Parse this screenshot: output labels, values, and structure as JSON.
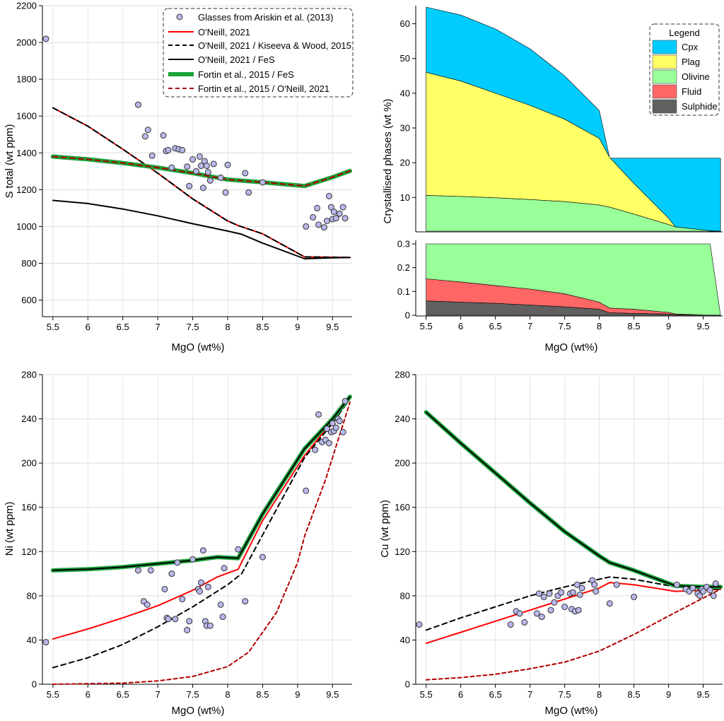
{
  "chart_data": [
    {
      "id": "sulfur",
      "type": "line",
      "xlabel": "MgO (wt%)",
      "ylabel": "S total (wt ppm)",
      "xlim": [
        5.35,
        9.78
      ],
      "ylim": [
        510,
        2200
      ],
      "xticks": [
        5.5,
        6,
        6.5,
        7,
        7.5,
        8,
        8.5,
        9,
        9.5
      ],
      "xticklabels": [
        "5.5",
        "6",
        "6.5",
        "7",
        "7.5",
        "8",
        "8.5",
        "9",
        "9.5"
      ],
      "yticks": [
        600,
        800,
        1000,
        1200,
        1400,
        1600,
        1800,
        2000,
        2200
      ],
      "yticklabels": [
        "600",
        "800",
        "1000",
        "1200",
        "1400",
        "1600",
        "1800",
        "2000",
        "2200"
      ],
      "grid": true,
      "legend_position": "top-right",
      "series": [
        {
          "name": "O'Neill, 2021",
          "color": "#ff0000",
          "width": 2,
          "dash": "",
          "x": [
            5.5,
            6.0,
            6.5,
            7.0,
            7.5,
            8.0,
            8.15,
            8.5,
            9.1,
            9.5,
            9.75
          ],
          "y": [
            1645,
            1545,
            1420,
            1290,
            1150,
            1030,
            1005,
            960,
            835,
            833,
            832
          ]
        },
        {
          "name": "O'Neill, 2021 / Kiseeva & Wood, 2015",
          "color": "#000000",
          "width": 2,
          "dash": "8,5",
          "x": [
            5.5,
            6.0,
            6.5,
            7.0,
            7.5,
            8.0,
            8.15,
            8.5,
            9.1,
            9.5,
            9.75
          ],
          "y": [
            1645,
            1545,
            1420,
            1290,
            1150,
            1030,
            1005,
            960,
            835,
            833,
            832
          ]
        },
        {
          "name": "O'Neill, 2021 / FeS",
          "color": "#000000",
          "width": 2,
          "dash": "",
          "x": [
            5.5,
            6.0,
            6.5,
            7.0,
            7.5,
            8.0,
            8.2,
            8.5,
            9.1,
            9.5,
            9.75
          ],
          "y": [
            1142,
            1125,
            1095,
            1058,
            1015,
            975,
            958,
            910,
            825,
            830,
            832
          ]
        },
        {
          "name": "Fortin et al., 2015 / FeS",
          "color": "#1aa339",
          "width": 6,
          "dash": "",
          "x": [
            5.5,
            6.0,
            6.5,
            7.0,
            7.5,
            8.0,
            8.5,
            9.1,
            9.5,
            9.75
          ],
          "y": [
            1380,
            1365,
            1345,
            1320,
            1290,
            1255,
            1240,
            1220,
            1268,
            1302
          ]
        },
        {
          "name": "Fortin et al., 2015 / O'Neill, 2021",
          "color": "#b00000",
          "width": 2,
          "dash": "7,5",
          "x": [
            5.5,
            6.0,
            6.5,
            7.0,
            7.5,
            8.0,
            8.5,
            9.1,
            9.5,
            9.75
          ],
          "y": [
            1380,
            1365,
            1345,
            1320,
            1290,
            1255,
            1240,
            1220,
            1268,
            1302
          ]
        }
      ],
      "scatter": {
        "name": "Glasses from Ariskin et al. (2013)",
        "x": [
          5.4,
          6.72,
          6.82,
          6.86,
          6.92,
          7.08,
          7.12,
          7.15,
          7.2,
          7.25,
          7.3,
          7.35,
          7.42,
          7.45,
          7.5,
          7.55,
          7.6,
          7.62,
          7.65,
          7.67,
          7.7,
          7.72,
          7.75,
          7.8,
          7.9,
          7.97,
          8.0,
          8.25,
          8.3,
          8.5,
          9.12,
          9.22,
          9.28,
          9.3,
          9.38,
          9.42,
          9.45,
          9.48,
          9.5,
          9.52,
          9.55,
          9.6,
          9.65,
          9.68
        ],
        "y": [
          2020,
          1662,
          1490,
          1525,
          1385,
          1495,
          1410,
          1415,
          1320,
          1425,
          1420,
          1415,
          1325,
          1220,
          1365,
          1300,
          1380,
          1330,
          1210,
          1355,
          1330,
          1295,
          1250,
          1340,
          1265,
          1185,
          1335,
          1290,
          1185,
          1240,
          1000,
          1050,
          1100,
          1010,
          995,
          1030,
          1165,
          1105,
          1040,
          1080,
          1045,
          1070,
          1105,
          1045
        ]
      }
    },
    {
      "id": "phases",
      "type": "area",
      "xlabel": "MgO (wt%)",
      "ylabel": "Crystallised phases (wt %)",
      "x": [
        5.5,
        6.0,
        6.5,
        7.0,
        7.5,
        8.0,
        8.15,
        8.5,
        9.0,
        9.1,
        9.6,
        9.75
      ],
      "top_ylim": [
        0.3,
        65
      ],
      "top_yticks": [
        10,
        20,
        30,
        40,
        50,
        60
      ],
      "top_yticklabels": [
        "10",
        "20",
        "30",
        "40",
        "50",
        "60"
      ],
      "bottom_ylim": [
        0,
        0.3
      ],
      "bottom_yticks": [
        0,
        0.1,
        0.2,
        0.3
      ],
      "bottom_yticklabels": [
        "0",
        "0.1",
        "0.2",
        "0.3"
      ],
      "xticks": [
        5.5,
        6,
        6.5,
        7,
        7.5,
        8,
        8.5,
        9,
        9.5
      ],
      "xticklabels": [
        "5.5",
        "6",
        "6.5",
        "7",
        "7.5",
        "8",
        "8.5",
        "9",
        "9.5"
      ],
      "legend_title": "Legend",
      "legend_position": "top-right",
      "stack_order": [
        "Sulphide",
        "Fluid",
        "Olivine",
        "Plag",
        "Cpx"
      ],
      "series": [
        {
          "name": "Cpx",
          "color": "#00ccff",
          "cumulative": [
            64.8,
            62.5,
            58.5,
            52.8,
            45.0,
            35.0,
            21.3,
            21.3,
            21.3,
            21.3,
            21.3,
            21.3
          ],
          "top_x": [
            5.5,
            6.0,
            6.5,
            7.0,
            7.5,
            8.0,
            8.15
          ]
        },
        {
          "name": "Plag",
          "color": "#ffff66",
          "cumulative": [
            46.0,
            43.5,
            40.0,
            36.5,
            32.5,
            27.0,
            21.5,
            14.0,
            4.0,
            1.5,
            0.3,
            0.3
          ]
        },
        {
          "name": "Olivine",
          "color": "#99ff99",
          "cumulative": [
            10.6,
            10.3,
            9.9,
            9.4,
            8.8,
            7.8,
            7.2,
            5.2,
            2.2,
            1.5,
            0.4,
            0.0
          ]
        },
        {
          "name": "Fluid",
          "color": "#ff6666",
          "cumulative": [
            0.153,
            0.14,
            0.125,
            0.11,
            0.09,
            0.055,
            0.03,
            0.025,
            0.012,
            0.005,
            0.0,
            0.0
          ]
        },
        {
          "name": "Sulphide",
          "color": "#606060",
          "cumulative": [
            0.06,
            0.055,
            0.05,
            0.043,
            0.035,
            0.025,
            0.01,
            0.008,
            0.005,
            0.002,
            0.0,
            0.0
          ]
        }
      ]
    },
    {
      "id": "nickel",
      "type": "line",
      "xlabel": "MgO (wt%)",
      "ylabel": "Ni (wt ppm)",
      "xlim": [
        5.35,
        9.78
      ],
      "ylim": [
        0,
        280
      ],
      "xticks": [
        5.5,
        6,
        6.5,
        7,
        7.5,
        8,
        8.5,
        9,
        9.5
      ],
      "xticklabels": [
        "5.5",
        "6",
        "6.5",
        "7",
        "7.5",
        "8",
        "8.5",
        "9",
        "9.5"
      ],
      "yticks": [
        0,
        40,
        80,
        120,
        160,
        200,
        240,
        280
      ],
      "yticklabels": [
        "0",
        "40",
        "80",
        "120",
        "160",
        "200",
        "240",
        "280"
      ],
      "grid": true,
      "series": [
        {
          "color": "#ff0000",
          "width": 2,
          "dash": "",
          "x": [
            5.5,
            6.0,
            6.5,
            7.0,
            7.5,
            7.85,
            8.15,
            8.5,
            9.1,
            9.5,
            9.75
          ],
          "y": [
            41,
            50,
            60,
            71,
            85,
            97,
            104,
            148,
            207,
            238,
            258
          ]
        },
        {
          "color": "#000000",
          "width": 2,
          "dash": "7,5",
          "x": [
            5.5,
            6.0,
            6.5,
            7.0,
            7.5,
            8.0,
            8.2,
            8.5,
            9.1,
            9.5,
            9.75
          ],
          "y": [
            15,
            24,
            36,
            52,
            70,
            90,
            100,
            135,
            205,
            236,
            258
          ]
        },
        {
          "color": "#1aa339",
          "width": 6,
          "dash": "",
          "x": [
            5.5,
            6.0,
            6.5,
            7.0,
            7.5,
            7.85,
            8.15,
            8.5,
            9.1,
            9.5,
            9.75
          ],
          "y": [
            103,
            104,
            106,
            109,
            112,
            115,
            114,
            154,
            213,
            240,
            260
          ]
        },
        {
          "color": "#000000",
          "width": 2,
          "dash": "",
          "x": [
            5.5,
            6.0,
            6.5,
            7.0,
            7.5,
            7.85,
            8.15,
            8.5,
            9.1,
            9.5,
            9.75
          ],
          "y": [
            103,
            104,
            106,
            109,
            112,
            115,
            114,
            154,
            213,
            240,
            260
          ]
        },
        {
          "color": "#b00000",
          "width": 2,
          "dash": "5,4",
          "x": [
            5.5,
            6.0,
            6.5,
            7.0,
            7.5,
            8.0,
            8.3,
            8.7,
            9.0,
            9.1,
            9.4,
            9.75
          ],
          "y": [
            0,
            0.5,
            1,
            3,
            7,
            16,
            29,
            65,
            110,
            134,
            185,
            255
          ]
        }
      ],
      "scatter": {
        "x": [
          5.4,
          6.72,
          6.8,
          6.85,
          6.9,
          7.1,
          7.13,
          7.15,
          7.2,
          7.25,
          7.28,
          7.35,
          7.42,
          7.45,
          7.5,
          7.58,
          7.6,
          7.62,
          7.65,
          7.68,
          7.7,
          7.72,
          7.75,
          7.9,
          7.93,
          7.95,
          8.15,
          8.25,
          8.5,
          9.12,
          9.25,
          9.3,
          9.35,
          9.4,
          9.42,
          9.45,
          9.48,
          9.5,
          9.52,
          9.55,
          9.58,
          9.6,
          9.65,
          9.68
        ],
        "y": [
          38,
          103,
          75,
          72,
          103,
          86,
          60,
          59,
          100,
          59,
          110,
          77,
          49,
          57,
          113,
          86,
          84,
          92,
          121,
          57,
          53,
          88,
          53,
          72,
          61,
          105,
          122,
          75,
          115,
          175,
          212,
          244,
          219,
          221,
          231,
          218,
          228,
          236,
          229,
          232,
          240,
          238,
          228,
          256
        ]
      }
    },
    {
      "id": "copper",
      "type": "line",
      "xlabel": "MgO (wt%)",
      "ylabel": "Cu (wt ppm)",
      "xlim": [
        5.35,
        9.78
      ],
      "ylim": [
        0,
        280
      ],
      "xticks": [
        5.5,
        6,
        6.5,
        7,
        7.5,
        8,
        8.5,
        9,
        9.5
      ],
      "xticklabels": [
        "5.5",
        "6",
        "6.5",
        "7",
        "7.5",
        "8",
        "8.5",
        "9",
        "9.5"
      ],
      "yticks": [
        0,
        40,
        80,
        120,
        160,
        200,
        240,
        280
      ],
      "yticklabels": [
        "0",
        "40",
        "80",
        "120",
        "160",
        "200",
        "240",
        "280"
      ],
      "grid": true,
      "series": [
        {
          "color": "#ff0000",
          "width": 2,
          "dash": "",
          "x": [
            5.5,
            6.0,
            6.5,
            7.0,
            7.5,
            8.0,
            8.15,
            8.5,
            9.1,
            9.5,
            9.75
          ],
          "y": [
            37,
            47,
            57,
            67,
            77,
            87,
            92,
            90,
            84,
            85,
            86
          ]
        },
        {
          "color": "#000000",
          "width": 2,
          "dash": "7,5",
          "x": [
            5.5,
            6.0,
            6.5,
            7.0,
            7.5,
            8.0,
            8.15,
            8.5,
            9.1,
            9.5,
            9.75
          ],
          "y": [
            49,
            60,
            70,
            80,
            88,
            95,
            97,
            95,
            88,
            86,
            86
          ]
        },
        {
          "color": "#1aa339",
          "width": 6,
          "dash": "",
          "x": [
            5.5,
            6.0,
            6.5,
            7.0,
            7.5,
            8.0,
            8.15,
            8.5,
            9.1,
            9.5,
            9.75
          ],
          "y": [
            246,
            218,
            191,
            164,
            138,
            116,
            110,
            103,
            89,
            88,
            88
          ]
        },
        {
          "color": "#000000",
          "width": 2,
          "dash": "",
          "x": [
            5.5,
            6.0,
            6.5,
            7.0,
            7.5,
            8.0,
            8.15,
            8.5,
            9.1,
            9.5,
            9.75
          ],
          "y": [
            246,
            218,
            191,
            164,
            138,
            116,
            110,
            103,
            89,
            88,
            88
          ]
        },
        {
          "color": "#b00000",
          "width": 2,
          "dash": "5,4",
          "x": [
            5.5,
            6.0,
            6.5,
            7.0,
            7.5,
            8.0,
            8.5,
            9.1,
            9.5,
            9.75
          ],
          "y": [
            4,
            6,
            9,
            14,
            20,
            30,
            45,
            65,
            78,
            86
          ]
        }
      ],
      "scatter": {
        "x": [
          5.4,
          6.72,
          6.8,
          6.85,
          6.92,
          7.1,
          7.13,
          7.17,
          7.2,
          7.28,
          7.3,
          7.35,
          7.4,
          7.45,
          7.5,
          7.58,
          7.6,
          7.62,
          7.65,
          7.68,
          7.7,
          7.72,
          7.75,
          7.9,
          7.93,
          7.95,
          8.15,
          8.25,
          8.5,
          9.12,
          9.25,
          9.3,
          9.35,
          9.42,
          9.45,
          9.48,
          9.5,
          9.55,
          9.6,
          9.65,
          9.68
        ],
        "y": [
          54,
          54,
          66,
          64,
          56,
          64,
          82,
          61,
          79,
          82,
          67,
          74,
          80,
          83,
          70,
          82,
          68,
          83,
          66,
          90,
          67,
          81,
          87,
          94,
          90,
          84,
          73,
          90,
          79,
          90,
          86,
          84,
          87,
          82,
          80,
          86,
          84,
          88,
          85,
          80,
          91
        ]
      }
    }
  ]
}
